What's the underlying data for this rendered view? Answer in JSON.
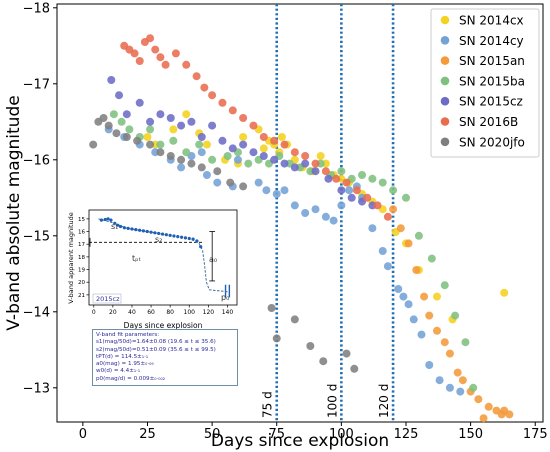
{
  "chart_data": [
    {
      "type": "scatter",
      "title": "",
      "xlabel": "Days since explosion",
      "ylabel": "V-band absolute magnitude",
      "xlim": [
        -10,
        178
      ],
      "ylim": [
        -12.55,
        -18.05
      ],
      "y_inverted": true,
      "x_ticks": [
        0,
        25,
        50,
        75,
        100,
        125,
        150,
        175
      ],
      "y_ticks": [
        -18,
        -17,
        -16,
        -15,
        -14,
        -13
      ],
      "y_tick_labels": [
        "−18",
        "−17",
        "−16",
        "−15",
        "−14",
        "−13"
      ],
      "legend": "top-right",
      "grid": false,
      "vlines": [
        {
          "x": 75,
          "label": "75 d",
          "color": "#1f6fb4",
          "style": "dotted"
        },
        {
          "x": 100,
          "label": "100 d",
          "color": "#1f6fb4",
          "style": "dotted"
        },
        {
          "x": 120,
          "label": "120 d",
          "color": "#1f6fb4",
          "style": "dotted"
        }
      ],
      "series": [
        {
          "name": "SN 2014cx",
          "color": "#f5d21f",
          "points": [
            [
              48,
              -16.2
            ],
            [
              55,
              -16.0
            ],
            [
              60,
              -15.95
            ],
            [
              62,
              -16.3
            ],
            [
              68,
              -16.4
            ],
            [
              70,
              -16.15
            ],
            [
              72,
              -16.25
            ],
            [
              74,
              -16.2
            ],
            [
              76,
              -16.1
            ],
            [
              77,
              -16.3
            ],
            [
              79,
              -16.2
            ],
            [
              82,
              -16.0
            ],
            [
              85,
              -15.9
            ],
            [
              89,
              -15.85
            ],
            [
              92,
              -16.05
            ],
            [
              94,
              -15.95
            ],
            [
              97,
              -15.8
            ],
            [
              100,
              -15.75
            ],
            [
              103,
              -15.7
            ],
            [
              108,
              -15.55
            ],
            [
              112,
              -15.45
            ],
            [
              116,
              -15.35
            ],
            [
              121,
              -15.05
            ],
            [
              125,
              -14.9
            ],
            [
              130,
              -14.55
            ],
            [
              137,
              -14.2
            ],
            [
              143,
              -13.9
            ],
            [
              163,
              -14.25
            ],
            [
              25,
              -16.3
            ],
            [
              28,
              -16.2
            ],
            [
              35,
              -16.4
            ],
            [
              40,
              -16.6
            ],
            [
              45,
              -16.35
            ]
          ]
        },
        {
          "name": "SN 2014cy",
          "color": "#73a2d6",
          "points": [
            [
              10,
              -16.4
            ],
            [
              16,
              -16.3
            ],
            [
              22,
              -16.2
            ],
            [
              28,
              -16.1
            ],
            [
              34,
              -16.0
            ],
            [
              38,
              -15.9
            ],
            [
              42,
              -16.05
            ],
            [
              46,
              -16.1
            ],
            [
              48,
              -15.8
            ],
            [
              52,
              -15.7
            ],
            [
              58,
              -15.65
            ],
            [
              60,
              -16.0
            ],
            [
              68,
              -15.7
            ],
            [
              71,
              -15.6
            ],
            [
              75,
              -15.55
            ],
            [
              78,
              -15.6
            ],
            [
              82,
              -15.4
            ],
            [
              86,
              -15.3
            ],
            [
              90,
              -15.35
            ],
            [
              94,
              -15.25
            ],
            [
              97,
              -15.2
            ],
            [
              100,
              -15.4
            ],
            [
              103,
              -15.6
            ],
            [
              106,
              -15.65
            ],
            [
              108,
              -15.5
            ],
            [
              112,
              -15.1
            ],
            [
              116,
              -14.8
            ],
            [
              118,
              -14.6
            ],
            [
              122,
              -14.3
            ],
            [
              124,
              -14.2
            ],
            [
              126,
              -14.1
            ],
            [
              128,
              -13.9
            ],
            [
              131,
              -13.7
            ],
            [
              134,
              -13.3
            ],
            [
              138,
              -13.1
            ],
            [
              142,
              -13.0
            ],
            [
              146,
              -12.95
            ]
          ]
        },
        {
          "name": "SN 2015an",
          "color": "#f49a3a",
          "points": [
            [
              120,
              -15.35
            ],
            [
              123,
              -15.1
            ],
            [
              126,
              -14.9
            ],
            [
              129,
              -14.55
            ],
            [
              132,
              -14.2
            ],
            [
              134,
              -13.95
            ],
            [
              137,
              -13.75
            ],
            [
              140,
              -13.6
            ],
            [
              142,
              -13.45
            ],
            [
              145,
              -13.2
            ],
            [
              147,
              -13.1
            ],
            [
              150,
              -12.95
            ],
            [
              153,
              -12.85
            ],
            [
              157,
              -12.75
            ],
            [
              160,
              -12.7
            ],
            [
              163,
              -12.7
            ],
            [
              165,
              -12.65
            ],
            [
              155,
              -12.6
            ],
            [
              162,
              -12.65
            ]
          ]
        },
        {
          "name": "SN 2015ba",
          "color": "#7fc07f",
          "points": [
            [
              12,
              -16.6
            ],
            [
              15,
              -16.5
            ],
            [
              18,
              -16.4
            ],
            [
              22,
              -16.3
            ],
            [
              26,
              -16.4
            ],
            [
              30,
              -16.2
            ],
            [
              35,
              -16.25
            ],
            [
              40,
              -16.1
            ],
            [
              45,
              -16.2
            ],
            [
              50,
              -16.0
            ],
            [
              56,
              -16.05
            ],
            [
              60,
              -16.1
            ],
            [
              64,
              -15.95
            ],
            [
              68,
              -16.0
            ],
            [
              72,
              -15.95
            ],
            [
              76,
              -16.05
            ],
            [
              80,
              -15.95
            ],
            [
              84,
              -15.9
            ],
            [
              88,
              -15.85
            ],
            [
              92,
              -15.95
            ],
            [
              96,
              -15.8
            ],
            [
              100,
              -15.85
            ],
            [
              104,
              -15.75
            ],
            [
              108,
              -15.8
            ],
            [
              112,
              -15.75
            ],
            [
              116,
              -15.7
            ],
            [
              120,
              -15.6
            ],
            [
              125,
              -15.5
            ],
            [
              130,
              -15.0
            ],
            [
              135,
              -14.7
            ],
            [
              140,
              -14.35
            ],
            [
              144,
              -13.95
            ],
            [
              148,
              -13.6
            ],
            [
              151,
              -13.0
            ]
          ]
        },
        {
          "name": "SN 2015cz",
          "color": "#6c6cc6",
          "points": [
            [
              11,
              -17.05
            ],
            [
              14,
              -16.85
            ],
            [
              17,
              -16.6
            ],
            [
              22,
              -16.75
            ],
            [
              26,
              -16.5
            ],
            [
              30,
              -16.6
            ],
            [
              34,
              -16.55
            ],
            [
              38,
              -16.45
            ],
            [
              42,
              -16.5
            ],
            [
              46,
              -16.3
            ],
            [
              50,
              -16.45
            ],
            [
              54,
              -16.25
            ],
            [
              58,
              -16.15
            ],
            [
              62,
              -16.2
            ],
            [
              66,
              -16.1
            ],
            [
              70,
              -16.05
            ],
            [
              74,
              -16.0
            ],
            [
              78,
              -15.95
            ],
            [
              82,
              -15.9
            ],
            [
              86,
              -15.95
            ],
            [
              90,
              -15.85
            ],
            [
              95,
              -15.75
            ],
            [
              100,
              -15.6
            ],
            [
              104,
              -15.5
            ],
            [
              108,
              -15.45
            ],
            [
              112,
              -15.4
            ]
          ]
        },
        {
          "name": "SN 2016B",
          "color": "#e86c4e",
          "points": [
            [
              16,
              -17.5
            ],
            [
              18,
              -17.45
            ],
            [
              20,
              -17.4
            ],
            [
              22,
              -17.3
            ],
            [
              24,
              -17.55
            ],
            [
              26,
              -17.6
            ],
            [
              28,
              -17.45
            ],
            [
              30,
              -17.35
            ],
            [
              32,
              -17.25
            ],
            [
              36,
              -17.4
            ],
            [
              40,
              -17.25
            ],
            [
              44,
              -17.1
            ],
            [
              47,
              -16.95
            ],
            [
              50,
              -16.85
            ],
            [
              54,
              -16.75
            ],
            [
              58,
              -16.65
            ],
            [
              62,
              -16.55
            ],
            [
              66,
              -16.45
            ],
            [
              70,
              -16.3
            ],
            [
              74,
              -16.25
            ],
            [
              78,
              -16.2
            ],
            [
              82,
              -16.1
            ],
            [
              86,
              -16.05
            ],
            [
              90,
              -15.95
            ],
            [
              94,
              -15.85
            ],
            [
              98,
              -15.75
            ],
            [
              102,
              -15.7
            ],
            [
              106,
              -15.6
            ],
            [
              110,
              -15.5
            ],
            [
              114,
              -15.4
            ],
            [
              118,
              -15.25
            ]
          ]
        },
        {
          "name": "SN 2020jfo",
          "color": "#7f7f7f",
          "points": [
            [
              4,
              -16.2
            ],
            [
              6,
              -16.5
            ],
            [
              8,
              -16.55
            ],
            [
              10,
              -16.45
            ],
            [
              13,
              -16.35
            ],
            [
              17,
              -16.3
            ],
            [
              21,
              -16.25
            ],
            [
              26,
              -16.2
            ],
            [
              30,
              -16.1
            ],
            [
              34,
              -16.05
            ],
            [
              38,
              -16.0
            ],
            [
              42,
              -15.95
            ],
            [
              46,
              -15.9
            ],
            [
              52,
              -15.85
            ],
            [
              57,
              -15.7
            ],
            [
              62,
              -15.65
            ],
            [
              73,
              -14.05
            ],
            [
              75,
              -13.65
            ],
            [
              82,
              -13.9
            ],
            [
              88,
              -13.55
            ],
            [
              93,
              -13.35
            ],
            [
              102,
              -13.45
            ],
            [
              105,
              -13.25
            ]
          ]
        }
      ]
    },
    {
      "type": "line",
      "title": "",
      "xlabel": "Days since explosion",
      "ylabel": "V-band apparent magnitude",
      "xlim": [
        -5,
        150
      ],
      "ylim": [
        21.8,
        14.3
      ],
      "y_inverted": true,
      "x_ticks": [
        0,
        20,
        40,
        60,
        80,
        100,
        120,
        140
      ],
      "y_ticks": [
        15,
        16,
        17,
        18,
        19,
        20,
        21
      ],
      "label_box": "2015cz",
      "annotations": [
        "s₁",
        "s₂",
        "tₚₜ",
        "a₀",
        "p₀"
      ],
      "series": [
        {
          "name": "data",
          "color": "#1f5fb4",
          "points": [
            [
              8,
              15.1
            ],
            [
              12,
              15.05
            ],
            [
              15,
              15.0
            ],
            [
              18,
              15.1
            ],
            [
              22,
              15.35
            ],
            [
              25,
              15.5
            ],
            [
              28,
              15.6
            ],
            [
              32,
              15.7
            ],
            [
              36,
              15.75
            ],
            [
              40,
              15.8
            ],
            [
              44,
              15.85
            ],
            [
              48,
              15.9
            ],
            [
              52,
              15.95
            ],
            [
              56,
              16.0
            ],
            [
              60,
              16.05
            ],
            [
              64,
              16.1
            ],
            [
              68,
              16.15
            ],
            [
              72,
              16.2
            ],
            [
              76,
              16.25
            ],
            [
              80,
              16.3
            ],
            [
              84,
              16.35
            ],
            [
              88,
              16.4
            ],
            [
              92,
              16.45
            ],
            [
              96,
              16.5
            ],
            [
              100,
              16.55
            ],
            [
              104,
              16.6
            ],
            [
              108,
              16.75
            ],
            [
              112,
              17.2
            ]
          ]
        },
        {
          "name": "fit",
          "color": "#3a6ea5",
          "points": [
            [
              5,
              15.0
            ],
            [
              20,
              15.3
            ],
            [
              35,
              15.75
            ],
            [
              60,
              16.05
            ],
            [
              100,
              16.55
            ],
            [
              110,
              16.9
            ],
            [
              114,
              17.5
            ],
            [
              116,
              18.6
            ],
            [
              118,
              20.0
            ],
            [
              121,
              20.6
            ],
            [
              140,
              20.75
            ]
          ]
        }
      ]
    }
  ],
  "fit_params": {
    "header": "V-band fit parameters:",
    "lines": [
      "s1(mag/50d)=1.64±0.08 (19.6 ≤ t ≤ 35.6)",
      "s2(mag/50d)=0.51±0.09 (35.6 ≤ t ≤ 99.5)",
      "tPT(d) = 114.5±₁·₁",
      "a0(mag) = 1.95±₀·₀₉",
      "w0(d) = 4.4±₁·₁",
      "p0(mag/d) = 0.009±₀·₀₀₂"
    ]
  }
}
